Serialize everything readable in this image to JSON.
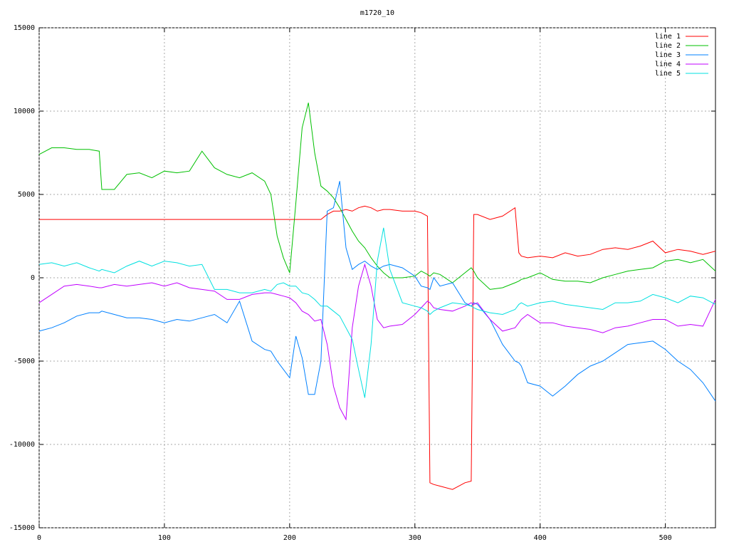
{
  "chart_data": {
    "type": "line",
    "title": "m1720_10",
    "x": [
      0,
      10,
      20,
      30,
      40,
      48,
      50,
      60,
      70,
      80,
      90,
      100,
      110,
      120,
      130,
      140,
      150,
      160,
      170,
      180,
      185,
      190,
      195,
      200,
      205,
      210,
      215,
      220,
      225,
      230,
      235,
      240,
      245,
      250,
      255,
      260,
      265,
      270,
      275,
      280,
      290,
      300,
      305,
      310,
      312,
      315,
      320,
      330,
      340,
      345,
      347,
      350,
      360,
      370,
      380,
      383,
      385,
      390,
      400,
      410,
      420,
      430,
      440,
      450,
      460,
      470,
      480,
      490,
      500,
      510,
      520,
      530,
      540
    ],
    "series": [
      {
        "name": "line 1",
        "color": "#ff0000",
        "values": [
          3500,
          3500,
          3500,
          3500,
          3500,
          3500,
          3500,
          3500,
          3500,
          3500,
          3500,
          3500,
          3500,
          3500,
          3500,
          3500,
          3500,
          3500,
          3500,
          3500,
          3500,
          3500,
          3500,
          3500,
          3500,
          3500,
          3500,
          3500,
          3500,
          3800,
          4000,
          4000,
          4100,
          4000,
          4200,
          4300,
          4200,
          4000,
          4100,
          4100,
          4000,
          4000,
          3900,
          3700,
          -12300,
          -12400,
          -12500,
          -12700,
          -12300,
          -12200,
          3800,
          3800,
          3500,
          3700,
          4200,
          1500,
          1300,
          1200,
          1300,
          1200,
          1500,
          1300,
          1400,
          1700,
          1800,
          1700,
          1900,
          2200,
          1500,
          1700,
          1600,
          1400,
          1600
        ]
      },
      {
        "name": "line 2",
        "color": "#00c000",
        "values": [
          7400,
          7800,
          7800,
          7700,
          7700,
          7600,
          5300,
          5300,
          6200,
          6300,
          6000,
          6400,
          6300,
          6400,
          7600,
          6600,
          6200,
          6000,
          6300,
          5800,
          5000,
          2500,
          1200,
          300,
          4500,
          9000,
          10500,
          7500,
          5500,
          5200,
          4800,
          4200,
          3500,
          2800,
          2200,
          1800,
          1200,
          700,
          300,
          0,
          0,
          100,
          400,
          200,
          100,
          300,
          200,
          -300,
          300,
          600,
          400,
          0,
          -700,
          -600,
          -300,
          -200,
          -100,
          0,
          300,
          -100,
          -200,
          -200,
          -300,
          0,
          200,
          400,
          500,
          600,
          1000,
          1100,
          900,
          1100,
          400
        ]
      },
      {
        "name": "line 3",
        "color": "#0080ff",
        "values": [
          -3200,
          -3000,
          -2700,
          -2300,
          -2100,
          -2100,
          -2000,
          -2200,
          -2400,
          -2400,
          -2500,
          -2700,
          -2500,
          -2600,
          -2400,
          -2200,
          -2700,
          -1400,
          -3800,
          -4300,
          -4400,
          -5000,
          -5500,
          -6000,
          -3500,
          -4800,
          -7000,
          -7000,
          -5000,
          4000,
          4200,
          5800,
          1800,
          500,
          800,
          1000,
          700,
          500,
          700,
          800,
          600,
          100,
          -500,
          -600,
          -700,
          0,
          -500,
          -300,
          -1500,
          -1700,
          -1500,
          -1600,
          -2500,
          -4000,
          -5000,
          -5100,
          -5300,
          -6300,
          -6500,
          -7100,
          -6500,
          -5800,
          -5300,
          -5000,
          -4500,
          -4000,
          -3900,
          -3800,
          -4300,
          -5000,
          -5500,
          -6300,
          -7400
        ]
      },
      {
        "name": "line 4",
        "color": "#c000ff",
        "values": [
          -1500,
          -1000,
          -500,
          -400,
          -500,
          -600,
          -600,
          -400,
          -500,
          -400,
          -300,
          -500,
          -300,
          -600,
          -700,
          -800,
          -1300,
          -1300,
          -1000,
          -900,
          -900,
          -1000,
          -1100,
          -1200,
          -1500,
          -2000,
          -2200,
          -2600,
          -2500,
          -4000,
          -6500,
          -7800,
          -8500,
          -3000,
          -500,
          800,
          -500,
          -2500,
          -3000,
          -2900,
          -2800,
          -2200,
          -1800,
          -1400,
          -1500,
          -1800,
          -1900,
          -2000,
          -1700,
          -1500,
          -1600,
          -1500,
          -2500,
          -3200,
          -3000,
          -2700,
          -2500,
          -2200,
          -2700,
          -2700,
          -2900,
          -3000,
          -3100,
          -3300,
          -3000,
          -2900,
          -2700,
          -2500,
          -2500,
          -2900,
          -2800,
          -2900,
          -1300
        ]
      },
      {
        "name": "line 5",
        "color": "#00e0e0",
        "values": [
          800,
          900,
          700,
          900,
          600,
          400,
          500,
          300,
          700,
          1000,
          700,
          1000,
          900,
          700,
          800,
          -700,
          -700,
          -900,
          -900,
          -700,
          -800,
          -400,
          -300,
          -500,
          -500,
          -900,
          -1000,
          -1300,
          -1700,
          -1700,
          -2000,
          -2300,
          -3000,
          -3700,
          -5500,
          -7200,
          -4000,
          1000,
          3000,
          500,
          -1500,
          -1700,
          -1800,
          -2000,
          -2200,
          -2000,
          -1800,
          -1500,
          -1600,
          -1700,
          -1800,
          -1900,
          -2100,
          -2200,
          -1900,
          -1600,
          -1500,
          -1700,
          -1500,
          -1400,
          -1600,
          -1700,
          -1800,
          -1900,
          -1500,
          -1500,
          -1400,
          -1000,
          -1200,
          -1500,
          -1100,
          -1200,
          -1600
        ]
      }
    ],
    "xlim": [
      0,
      540
    ],
    "xticks": [
      0,
      100,
      200,
      300,
      400,
      500
    ],
    "ylim": [
      -15000,
      15000
    ],
    "yticks": [
      -15000,
      -10000,
      -5000,
      0,
      5000,
      10000,
      15000
    ],
    "grid": true,
    "legend": "top-right"
  }
}
